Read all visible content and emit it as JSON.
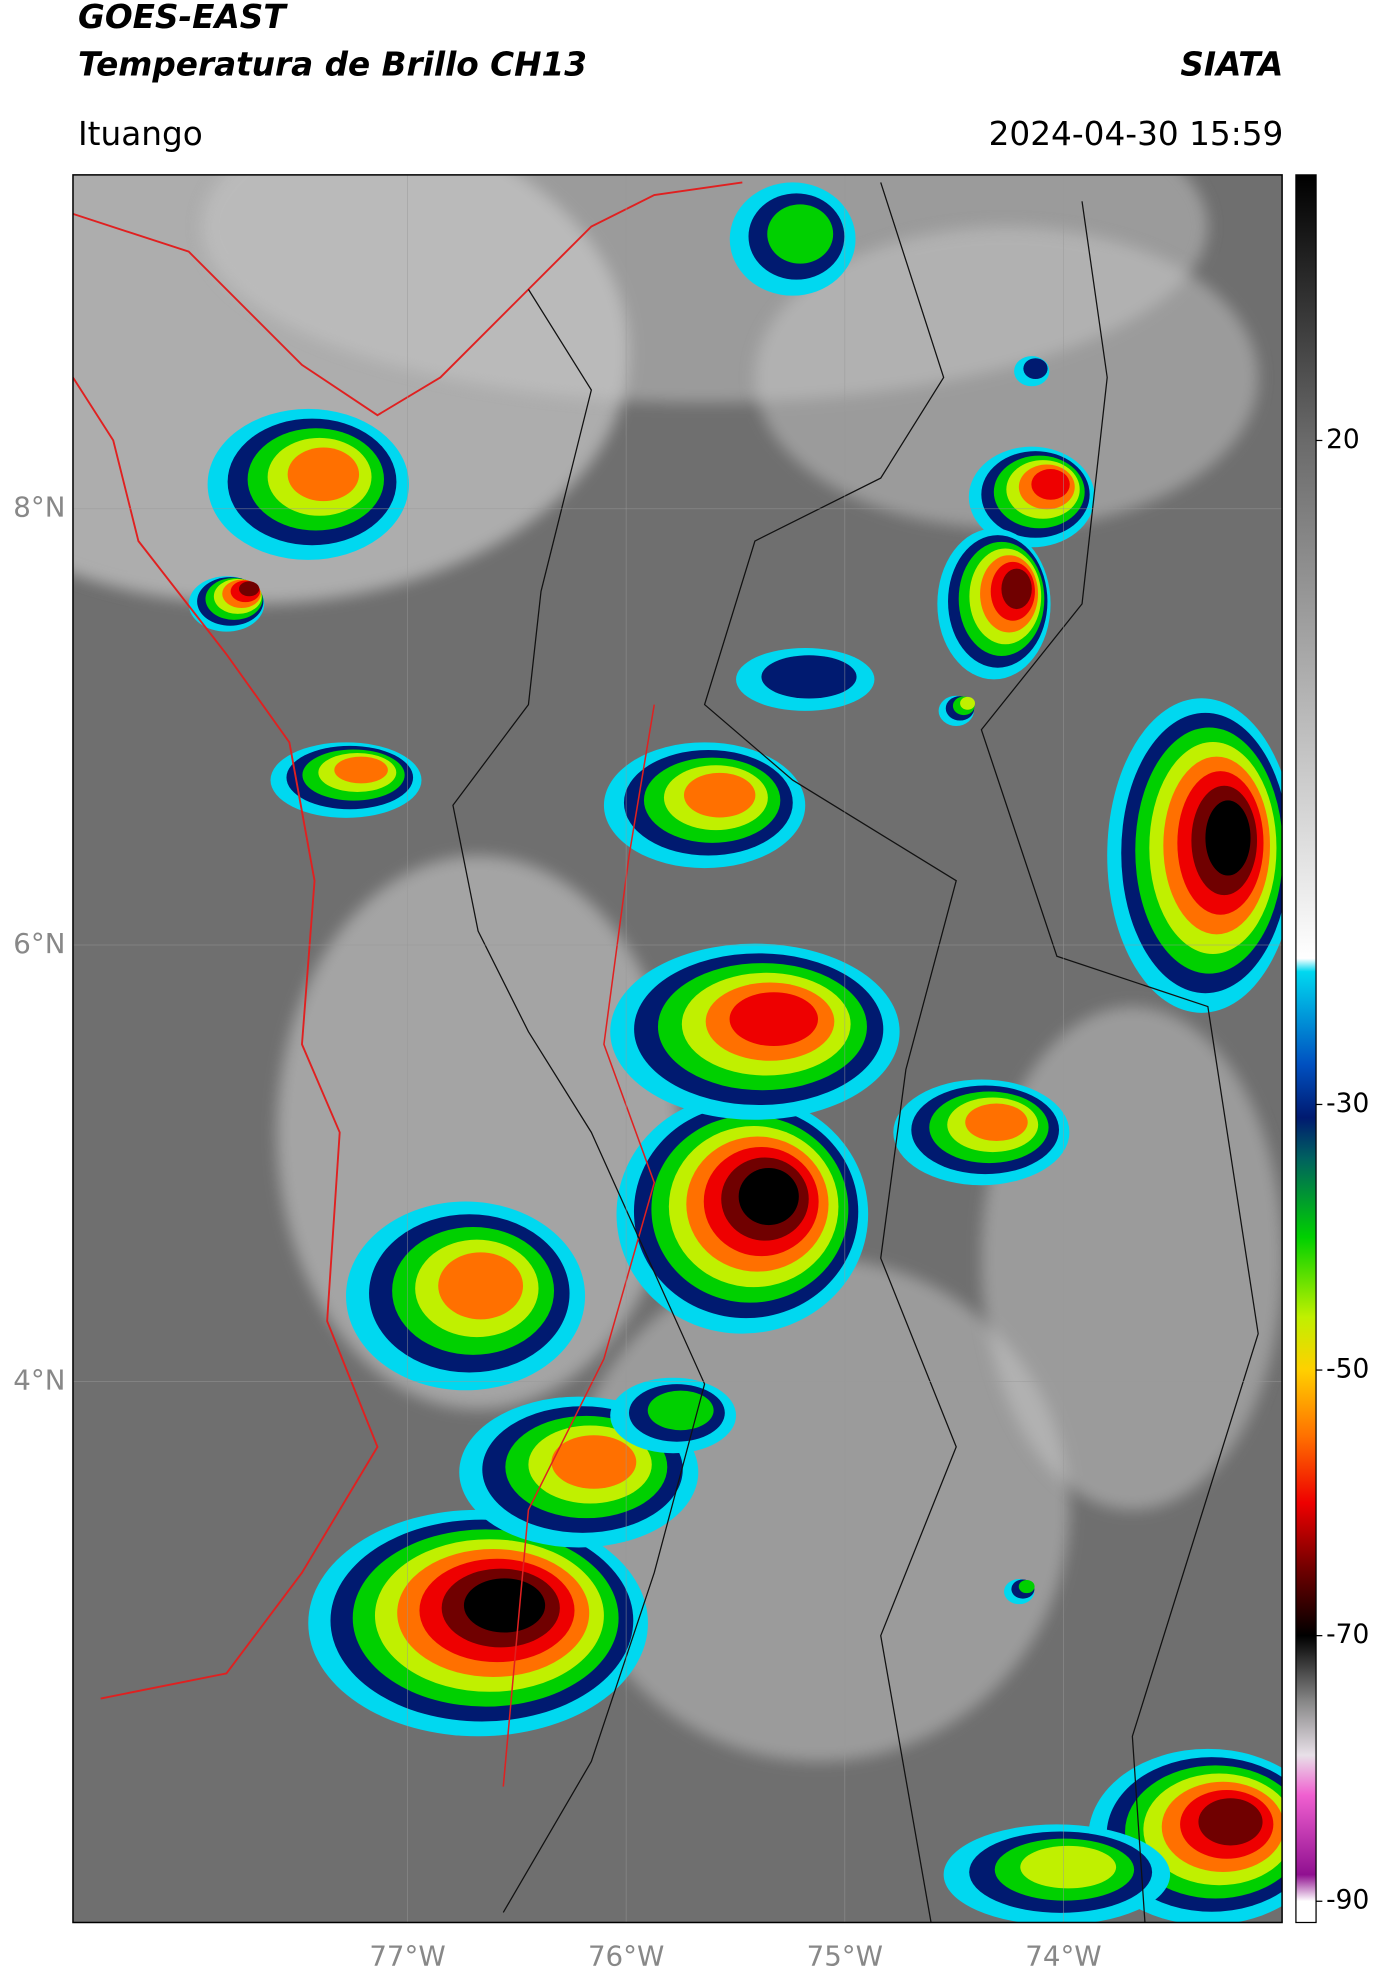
{
  "header": {
    "title": "GOES-EAST",
    "subtitle": "Temperatura de Brillo CH13",
    "source": "SIATA",
    "location": "Ituango",
    "datetime": "2024-04-30 15:59"
  },
  "map": {
    "xlim": [
      -78.53,
      -73.0
    ],
    "ylim": [
      1.52,
      9.53
    ],
    "xticks": [
      {
        "value": -77,
        "label": "77°W"
      },
      {
        "value": -76,
        "label": "76°W"
      },
      {
        "value": -75,
        "label": "75°W"
      },
      {
        "value": -74,
        "label": "74°W"
      }
    ],
    "yticks": [
      {
        "value": 8,
        "label": "8°N"
      },
      {
        "value": 6,
        "label": "6°N"
      },
      {
        "value": 4,
        "label": "4°N"
      }
    ],
    "grid": true
  },
  "colorbar": {
    "clim": [
      -91.6,
      40
    ],
    "ticks": [
      20,
      -30,
      -50,
      -70,
      -90
    ],
    "colormap": [
      {
        "value": 40,
        "color": "#000000"
      },
      {
        "value": 20,
        "color": "#6a6a6a"
      },
      {
        "value": -19,
        "color": "#ffffff"
      },
      {
        "value": -20,
        "color": "#00d8f0"
      },
      {
        "value": -27,
        "color": "#0050c0"
      },
      {
        "value": -31,
        "color": "#001a70"
      },
      {
        "value": -34,
        "color": "#006060"
      },
      {
        "value": -40,
        "color": "#00d000"
      },
      {
        "value": -46,
        "color": "#c0f000"
      },
      {
        "value": -50,
        "color": "#ffd000"
      },
      {
        "value": -55,
        "color": "#ff7000"
      },
      {
        "value": -60,
        "color": "#ee0000"
      },
      {
        "value": -65,
        "color": "#700000"
      },
      {
        "value": -70,
        "color": "#000000"
      },
      {
        "value": -75,
        "color": "#888888"
      },
      {
        "value": -79,
        "color": "#e8e0e8"
      },
      {
        "value": -82,
        "color": "#f060d0"
      },
      {
        "value": -88,
        "color": "#901090"
      },
      {
        "value": -90,
        "color": "#ffffff"
      }
    ]
  }
}
